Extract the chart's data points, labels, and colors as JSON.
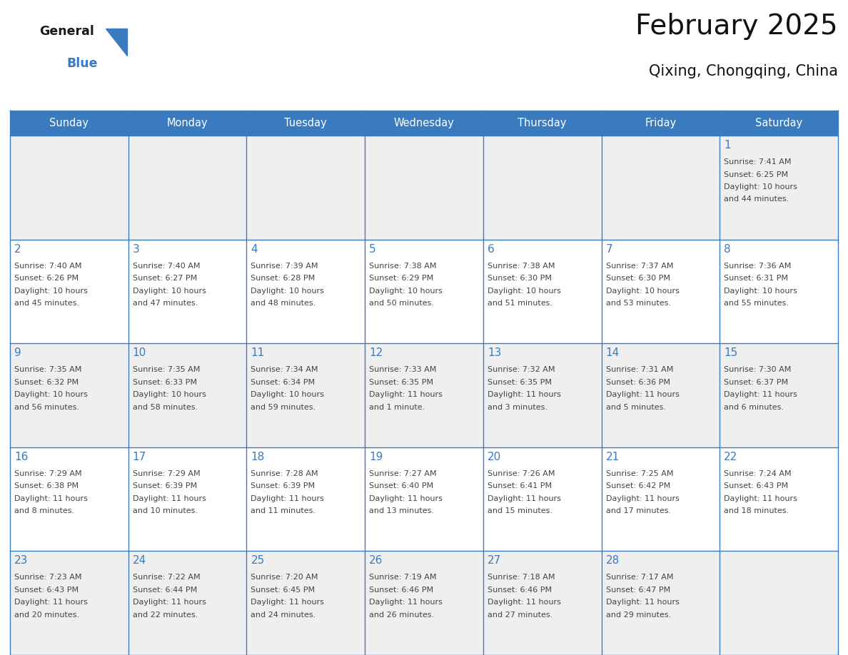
{
  "title": "February 2025",
  "subtitle": "Qixing, Chongqing, China",
  "header_color": "#3a7bbf",
  "header_text_color": "#ffffff",
  "day_names": [
    "Sunday",
    "Monday",
    "Tuesday",
    "Wednesday",
    "Thursday",
    "Friday",
    "Saturday"
  ],
  "bg_color": "#ffffff",
  "cell_bg_odd": "#efefef",
  "cell_bg_even": "#ffffff",
  "border_color": "#3a7bbf",
  "title_color": "#111111",
  "subtitle_color": "#111111",
  "day_num_color": "#3a7bbf",
  "text_color": "#444444",
  "calendar_data": [
    [
      null,
      null,
      null,
      null,
      null,
      null,
      {
        "day": 1,
        "sunrise": "7:41 AM",
        "sunset": "6:25 PM",
        "daylight": "10 hours and 44 minutes."
      }
    ],
    [
      {
        "day": 2,
        "sunrise": "7:40 AM",
        "sunset": "6:26 PM",
        "daylight": "10 hours and 45 minutes."
      },
      {
        "day": 3,
        "sunrise": "7:40 AM",
        "sunset": "6:27 PM",
        "daylight": "10 hours and 47 minutes."
      },
      {
        "day": 4,
        "sunrise": "7:39 AM",
        "sunset": "6:28 PM",
        "daylight": "10 hours and 48 minutes."
      },
      {
        "day": 5,
        "sunrise": "7:38 AM",
        "sunset": "6:29 PM",
        "daylight": "10 hours and 50 minutes."
      },
      {
        "day": 6,
        "sunrise": "7:38 AM",
        "sunset": "6:30 PM",
        "daylight": "10 hours and 51 minutes."
      },
      {
        "day": 7,
        "sunrise": "7:37 AM",
        "sunset": "6:30 PM",
        "daylight": "10 hours and 53 minutes."
      },
      {
        "day": 8,
        "sunrise": "7:36 AM",
        "sunset": "6:31 PM",
        "daylight": "10 hours and 55 minutes."
      }
    ],
    [
      {
        "day": 9,
        "sunrise": "7:35 AM",
        "sunset": "6:32 PM",
        "daylight": "10 hours and 56 minutes."
      },
      {
        "day": 10,
        "sunrise": "7:35 AM",
        "sunset": "6:33 PM",
        "daylight": "10 hours and 58 minutes."
      },
      {
        "day": 11,
        "sunrise": "7:34 AM",
        "sunset": "6:34 PM",
        "daylight": "10 hours and 59 minutes."
      },
      {
        "day": 12,
        "sunrise": "7:33 AM",
        "sunset": "6:35 PM",
        "daylight": "11 hours and 1 minute."
      },
      {
        "day": 13,
        "sunrise": "7:32 AM",
        "sunset": "6:35 PM",
        "daylight": "11 hours and 3 minutes."
      },
      {
        "day": 14,
        "sunrise": "7:31 AM",
        "sunset": "6:36 PM",
        "daylight": "11 hours and 5 minutes."
      },
      {
        "day": 15,
        "sunrise": "7:30 AM",
        "sunset": "6:37 PM",
        "daylight": "11 hours and 6 minutes."
      }
    ],
    [
      {
        "day": 16,
        "sunrise": "7:29 AM",
        "sunset": "6:38 PM",
        "daylight": "11 hours and 8 minutes."
      },
      {
        "day": 17,
        "sunrise": "7:29 AM",
        "sunset": "6:39 PM",
        "daylight": "11 hours and 10 minutes."
      },
      {
        "day": 18,
        "sunrise": "7:28 AM",
        "sunset": "6:39 PM",
        "daylight": "11 hours and 11 minutes."
      },
      {
        "day": 19,
        "sunrise": "7:27 AM",
        "sunset": "6:40 PM",
        "daylight": "11 hours and 13 minutes."
      },
      {
        "day": 20,
        "sunrise": "7:26 AM",
        "sunset": "6:41 PM",
        "daylight": "11 hours and 15 minutes."
      },
      {
        "day": 21,
        "sunrise": "7:25 AM",
        "sunset": "6:42 PM",
        "daylight": "11 hours and 17 minutes."
      },
      {
        "day": 22,
        "sunrise": "7:24 AM",
        "sunset": "6:43 PM",
        "daylight": "11 hours and 18 minutes."
      }
    ],
    [
      {
        "day": 23,
        "sunrise": "7:23 AM",
        "sunset": "6:43 PM",
        "daylight": "11 hours and 20 minutes."
      },
      {
        "day": 24,
        "sunrise": "7:22 AM",
        "sunset": "6:44 PM",
        "daylight": "11 hours and 22 minutes."
      },
      {
        "day": 25,
        "sunrise": "7:20 AM",
        "sunset": "6:45 PM",
        "daylight": "11 hours and 24 minutes."
      },
      {
        "day": 26,
        "sunrise": "7:19 AM",
        "sunset": "6:46 PM",
        "daylight": "11 hours and 26 minutes."
      },
      {
        "day": 27,
        "sunrise": "7:18 AM",
        "sunset": "6:46 PM",
        "daylight": "11 hours and 27 minutes."
      },
      {
        "day": 28,
        "sunrise": "7:17 AM",
        "sunset": "6:47 PM",
        "daylight": "11 hours and 29 minutes."
      },
      null
    ]
  ],
  "logo_general_color": "#1a1a1a",
  "logo_blue_color": "#3a7bbf",
  "logo_triangle_color": "#3a7bbf"
}
